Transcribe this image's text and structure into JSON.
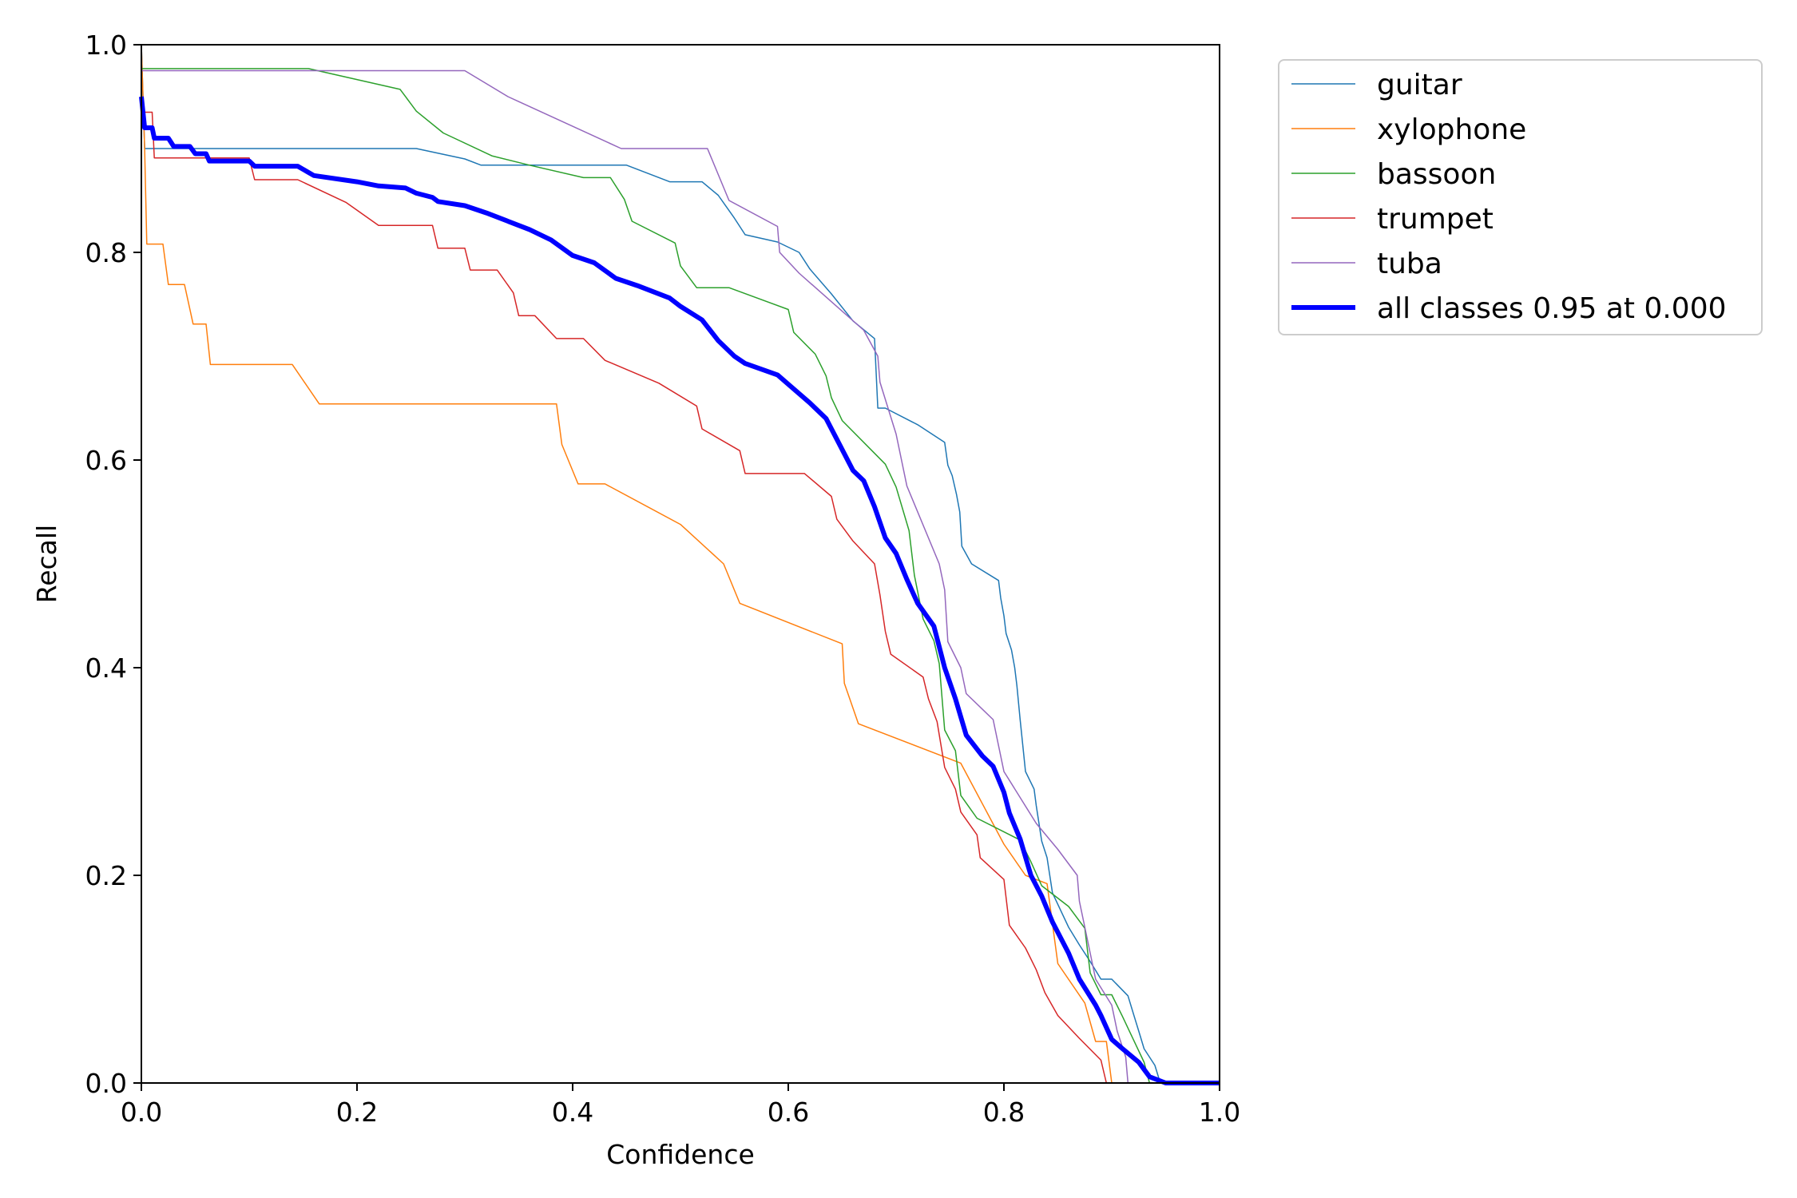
{
  "chart_data": {
    "type": "line",
    "xlabel": "Confidence",
    "ylabel": "Recall",
    "xlim": [
      0,
      1
    ],
    "ylim": [
      0,
      1
    ],
    "xticks": [
      "0.0",
      "0.2",
      "0.4",
      "0.6",
      "0.8",
      "1.0"
    ],
    "yticks": [
      "0.0",
      "0.2",
      "0.4",
      "0.6",
      "0.8",
      "1.0"
    ],
    "grid": false,
    "legend_position": "outside-top-right",
    "series": [
      {
        "name": "guitar",
        "color": "#1f77b4",
        "linewidth": 1.5,
        "points": [
          [
            0.0,
            1.0
          ],
          [
            0.003,
            0.9
          ],
          [
            0.05,
            0.9
          ],
          [
            0.1,
            0.9
          ],
          [
            0.15,
            0.9
          ],
          [
            0.2,
            0.9
          ],
          [
            0.255,
            0.9
          ],
          [
            0.3,
            0.89
          ],
          [
            0.315,
            0.884
          ],
          [
            0.4,
            0.884
          ],
          [
            0.45,
            0.884
          ],
          [
            0.49,
            0.868
          ],
          [
            0.52,
            0.868
          ],
          [
            0.535,
            0.855
          ],
          [
            0.55,
            0.833
          ],
          [
            0.56,
            0.817
          ],
          [
            0.59,
            0.81
          ],
          [
            0.61,
            0.8
          ],
          [
            0.62,
            0.784
          ],
          [
            0.64,
            0.76
          ],
          [
            0.66,
            0.734
          ],
          [
            0.68,
            0.717
          ],
          [
            0.683,
            0.65
          ],
          [
            0.69,
            0.65
          ],
          [
            0.72,
            0.634
          ],
          [
            0.745,
            0.617
          ],
          [
            0.748,
            0.595
          ],
          [
            0.752,
            0.585
          ],
          [
            0.756,
            0.567
          ],
          [
            0.759,
            0.55
          ],
          [
            0.761,
            0.517
          ],
          [
            0.77,
            0.5
          ],
          [
            0.795,
            0.484
          ],
          [
            0.797,
            0.467
          ],
          [
            0.8,
            0.45
          ],
          [
            0.802,
            0.433
          ],
          [
            0.807,
            0.417
          ],
          [
            0.81,
            0.4
          ],
          [
            0.812,
            0.383
          ],
          [
            0.815,
            0.35
          ],
          [
            0.82,
            0.3
          ],
          [
            0.828,
            0.283
          ],
          [
            0.83,
            0.267
          ],
          [
            0.835,
            0.233
          ],
          [
            0.84,
            0.217
          ],
          [
            0.845,
            0.183
          ],
          [
            0.86,
            0.15
          ],
          [
            0.87,
            0.133
          ],
          [
            0.88,
            0.117
          ],
          [
            0.89,
            0.1
          ],
          [
            0.9,
            0.1
          ],
          [
            0.915,
            0.084
          ],
          [
            0.92,
            0.067
          ],
          [
            0.925,
            0.05
          ],
          [
            0.93,
            0.033
          ],
          [
            0.94,
            0.017
          ],
          [
            0.945,
            0.0
          ],
          [
            1.0,
            0.0
          ]
        ]
      },
      {
        "name": "xylophone",
        "color": "#ff7f0e",
        "linewidth": 1.5,
        "points": [
          [
            0.0,
            1.0
          ],
          [
            0.003,
            0.9
          ],
          [
            0.005,
            0.808
          ],
          [
            0.02,
            0.808
          ],
          [
            0.025,
            0.769
          ],
          [
            0.04,
            0.769
          ],
          [
            0.048,
            0.731
          ],
          [
            0.06,
            0.731
          ],
          [
            0.064,
            0.692
          ],
          [
            0.14,
            0.692
          ],
          [
            0.165,
            0.654
          ],
          [
            0.37,
            0.654
          ],
          [
            0.385,
            0.654
          ],
          [
            0.39,
            0.615
          ],
          [
            0.405,
            0.577
          ],
          [
            0.43,
            0.577
          ],
          [
            0.5,
            0.538
          ],
          [
            0.54,
            0.5
          ],
          [
            0.555,
            0.462
          ],
          [
            0.65,
            0.423
          ],
          [
            0.652,
            0.385
          ],
          [
            0.665,
            0.346
          ],
          [
            0.76,
            0.308
          ],
          [
            0.8,
            0.23
          ],
          [
            0.82,
            0.2
          ],
          [
            0.84,
            0.192
          ],
          [
            0.85,
            0.115
          ],
          [
            0.875,
            0.077
          ],
          [
            0.885,
            0.04
          ],
          [
            0.895,
            0.04
          ],
          [
            0.9,
            0.0
          ],
          [
            1.0,
            0.0
          ]
        ]
      },
      {
        "name": "bassoon",
        "color": "#2ca02c",
        "linewidth": 1.5,
        "points": [
          [
            0.0,
            0.977
          ],
          [
            0.155,
            0.977
          ],
          [
            0.24,
            0.957
          ],
          [
            0.255,
            0.936
          ],
          [
            0.28,
            0.915
          ],
          [
            0.325,
            0.893
          ],
          [
            0.36,
            0.884
          ],
          [
            0.41,
            0.872
          ],
          [
            0.435,
            0.872
          ],
          [
            0.448,
            0.851
          ],
          [
            0.455,
            0.83
          ],
          [
            0.495,
            0.809
          ],
          [
            0.5,
            0.787
          ],
          [
            0.515,
            0.766
          ],
          [
            0.545,
            0.766
          ],
          [
            0.6,
            0.745
          ],
          [
            0.605,
            0.723
          ],
          [
            0.625,
            0.702
          ],
          [
            0.635,
            0.681
          ],
          [
            0.64,
            0.66
          ],
          [
            0.65,
            0.638
          ],
          [
            0.69,
            0.596
          ],
          [
            0.7,
            0.574
          ],
          [
            0.712,
            0.532
          ],
          [
            0.717,
            0.489
          ],
          [
            0.725,
            0.447
          ],
          [
            0.735,
            0.426
          ],
          [
            0.74,
            0.404
          ],
          [
            0.745,
            0.34
          ],
          [
            0.755,
            0.32
          ],
          [
            0.76,
            0.277
          ],
          [
            0.775,
            0.255
          ],
          [
            0.815,
            0.234
          ],
          [
            0.825,
            0.213
          ],
          [
            0.835,
            0.19
          ],
          [
            0.86,
            0.17
          ],
          [
            0.875,
            0.149
          ],
          [
            0.88,
            0.106
          ],
          [
            0.89,
            0.085
          ],
          [
            0.9,
            0.085
          ],
          [
            0.91,
            0.064
          ],
          [
            0.92,
            0.042
          ],
          [
            0.93,
            0.02
          ],
          [
            0.935,
            0.0
          ],
          [
            1.0,
            0.0
          ]
        ]
      },
      {
        "name": "trumpet",
        "color": "#d62728",
        "linewidth": 1.5,
        "points": [
          [
            0.0,
            0.935
          ],
          [
            0.01,
            0.935
          ],
          [
            0.012,
            0.891
          ],
          [
            0.1,
            0.891
          ],
          [
            0.105,
            0.87
          ],
          [
            0.145,
            0.87
          ],
          [
            0.19,
            0.848
          ],
          [
            0.22,
            0.826
          ],
          [
            0.27,
            0.826
          ],
          [
            0.275,
            0.804
          ],
          [
            0.3,
            0.804
          ],
          [
            0.305,
            0.783
          ],
          [
            0.33,
            0.783
          ],
          [
            0.345,
            0.761
          ],
          [
            0.35,
            0.739
          ],
          [
            0.365,
            0.739
          ],
          [
            0.385,
            0.717
          ],
          [
            0.41,
            0.717
          ],
          [
            0.43,
            0.696
          ],
          [
            0.48,
            0.674
          ],
          [
            0.515,
            0.652
          ],
          [
            0.52,
            0.63
          ],
          [
            0.555,
            0.609
          ],
          [
            0.56,
            0.587
          ],
          [
            0.615,
            0.587
          ],
          [
            0.64,
            0.565
          ],
          [
            0.645,
            0.543
          ],
          [
            0.66,
            0.522
          ],
          [
            0.68,
            0.5
          ],
          [
            0.685,
            0.47
          ],
          [
            0.69,
            0.435
          ],
          [
            0.695,
            0.413
          ],
          [
            0.725,
            0.391
          ],
          [
            0.73,
            0.37
          ],
          [
            0.738,
            0.348
          ],
          [
            0.745,
            0.304
          ],
          [
            0.755,
            0.283
          ],
          [
            0.76,
            0.261
          ],
          [
            0.775,
            0.239
          ],
          [
            0.778,
            0.217
          ],
          [
            0.8,
            0.196
          ],
          [
            0.805,
            0.152
          ],
          [
            0.82,
            0.13
          ],
          [
            0.83,
            0.109
          ],
          [
            0.838,
            0.087
          ],
          [
            0.85,
            0.065
          ],
          [
            0.87,
            0.043
          ],
          [
            0.89,
            0.022
          ],
          [
            0.895,
            0.0
          ],
          [
            1.0,
            0.0
          ]
        ]
      },
      {
        "name": "tuba",
        "color": "#9467bd",
        "linewidth": 1.5,
        "points": [
          [
            0.0,
            0.975
          ],
          [
            0.3,
            0.975
          ],
          [
            0.34,
            0.95
          ],
          [
            0.445,
            0.9
          ],
          [
            0.525,
            0.9
          ],
          [
            0.535,
            0.875
          ],
          [
            0.545,
            0.85
          ],
          [
            0.59,
            0.825
          ],
          [
            0.592,
            0.8
          ],
          [
            0.61,
            0.78
          ],
          [
            0.67,
            0.725
          ],
          [
            0.683,
            0.7
          ],
          [
            0.685,
            0.675
          ],
          [
            0.7,
            0.625
          ],
          [
            0.71,
            0.575
          ],
          [
            0.74,
            0.5
          ],
          [
            0.745,
            0.475
          ],
          [
            0.748,
            0.425
          ],
          [
            0.76,
            0.4
          ],
          [
            0.765,
            0.375
          ],
          [
            0.79,
            0.35
          ],
          [
            0.8,
            0.3
          ],
          [
            0.83,
            0.25
          ],
          [
            0.85,
            0.225
          ],
          [
            0.868,
            0.2
          ],
          [
            0.87,
            0.175
          ],
          [
            0.875,
            0.15
          ],
          [
            0.885,
            0.1
          ],
          [
            0.9,
            0.075
          ],
          [
            0.905,
            0.05
          ],
          [
            0.913,
            0.025
          ],
          [
            0.915,
            0.0
          ],
          [
            1.0,
            0.0
          ]
        ]
      },
      {
        "name": "all classes 0.95 at 0.000",
        "color": "#0000ff",
        "linewidth": 6,
        "points": [
          [
            0.0,
            0.95
          ],
          [
            0.003,
            0.92
          ],
          [
            0.01,
            0.92
          ],
          [
            0.012,
            0.91
          ],
          [
            0.025,
            0.91
          ],
          [
            0.03,
            0.902
          ],
          [
            0.045,
            0.902
          ],
          [
            0.05,
            0.895
          ],
          [
            0.06,
            0.895
          ],
          [
            0.063,
            0.888
          ],
          [
            0.1,
            0.888
          ],
          [
            0.105,
            0.883
          ],
          [
            0.145,
            0.883
          ],
          [
            0.16,
            0.874
          ],
          [
            0.2,
            0.868
          ],
          [
            0.22,
            0.864
          ],
          [
            0.245,
            0.862
          ],
          [
            0.255,
            0.857
          ],
          [
            0.27,
            0.853
          ],
          [
            0.275,
            0.849
          ],
          [
            0.3,
            0.845
          ],
          [
            0.32,
            0.838
          ],
          [
            0.34,
            0.83
          ],
          [
            0.36,
            0.822
          ],
          [
            0.38,
            0.812
          ],
          [
            0.4,
            0.797
          ],
          [
            0.42,
            0.79
          ],
          [
            0.44,
            0.775
          ],
          [
            0.46,
            0.768
          ],
          [
            0.49,
            0.756
          ],
          [
            0.5,
            0.748
          ],
          [
            0.52,
            0.735
          ],
          [
            0.535,
            0.715
          ],
          [
            0.55,
            0.7
          ],
          [
            0.56,
            0.693
          ],
          [
            0.59,
            0.682
          ],
          [
            0.6,
            0.673
          ],
          [
            0.62,
            0.655
          ],
          [
            0.635,
            0.64
          ],
          [
            0.645,
            0.62
          ],
          [
            0.66,
            0.59
          ],
          [
            0.67,
            0.58
          ],
          [
            0.68,
            0.555
          ],
          [
            0.69,
            0.525
          ],
          [
            0.7,
            0.51
          ],
          [
            0.71,
            0.485
          ],
          [
            0.72,
            0.462
          ],
          [
            0.735,
            0.44
          ],
          [
            0.745,
            0.4
          ],
          [
            0.755,
            0.37
          ],
          [
            0.765,
            0.335
          ],
          [
            0.78,
            0.315
          ],
          [
            0.79,
            0.305
          ],
          [
            0.8,
            0.28
          ],
          [
            0.805,
            0.26
          ],
          [
            0.815,
            0.235
          ],
          [
            0.825,
            0.2
          ],
          [
            0.835,
            0.18
          ],
          [
            0.845,
            0.155
          ],
          [
            0.86,
            0.125
          ],
          [
            0.87,
            0.1
          ],
          [
            0.885,
            0.075
          ],
          [
            0.89,
            0.065
          ],
          [
            0.9,
            0.042
          ],
          [
            0.91,
            0.033
          ],
          [
            0.925,
            0.02
          ],
          [
            0.935,
            0.006
          ],
          [
            0.95,
            0.0
          ],
          [
            1.0,
            0.0
          ]
        ]
      }
    ]
  }
}
